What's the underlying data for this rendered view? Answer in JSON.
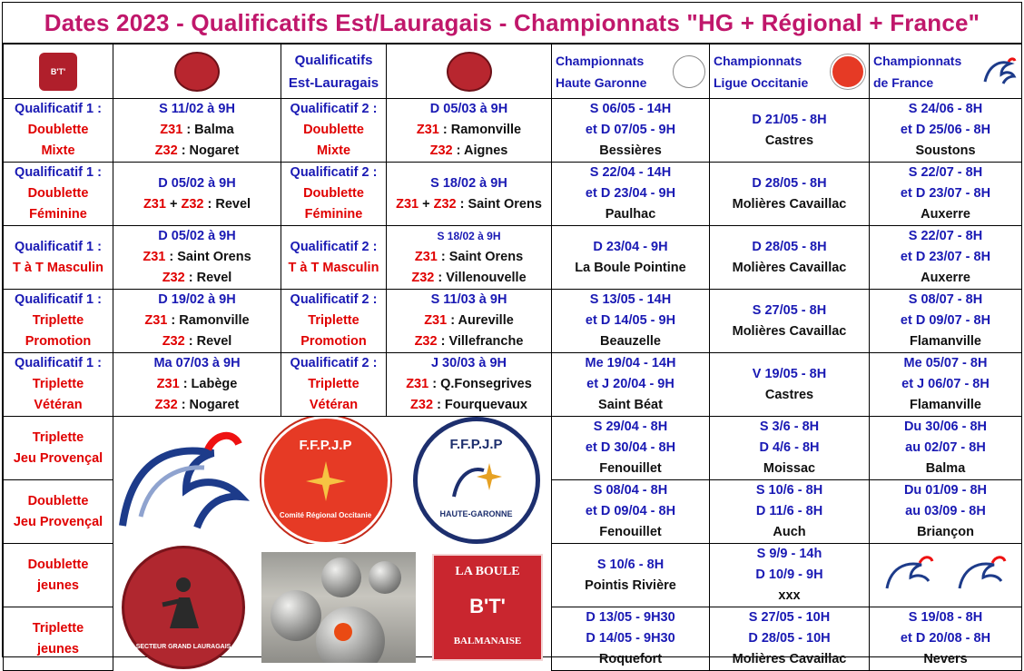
{
  "title": "Dates 2023 - Qualificatifs Est/Lauragais - Championnats \"HG + Régional + France\"",
  "header": {
    "qualif_line1": "Qualificatifs",
    "qualif_line2": "Est-Lauragais",
    "champ_hg_line1": "Championnats",
    "champ_hg_line2": "Haute Garonne",
    "champ_occ_line1": "Championnats",
    "champ_occ_line2": "Ligue Occitanie",
    "champ_fr_line1": "Championnats",
    "champ_fr_line2": "de France"
  },
  "logos": {
    "la_boule_top": "LA BOULE",
    "la_boule_bottom": "BALMANAISE",
    "la_boule_mark": "B'T'",
    "ffpjp": "F.F.P.J.P",
    "comite": "Comité Régional Occitanie",
    "haute_garonne": "HAUTE-GARONNE",
    "secteur": "SECTEUR GRAND LAURAGAIS"
  },
  "rows": [
    {
      "q1": [
        "Qualificatif 1 :",
        "Doublette",
        "Mixte"
      ],
      "q1_date": "S 11/02 à 9H",
      "q1_l2_code": "Z31",
      "q1_l2_place": ": Balma",
      "q1_l3_code": "Z32",
      "q1_l3_place": ": Nogaret",
      "q2": [
        "Qualificatif 2 :",
        "Doublette",
        "Mixte"
      ],
      "q2_date": "D 05/03 à 9H",
      "q2_l2_code": "Z31",
      "q2_l2_place": ": Ramonville",
      "q2_l3_code": "Z32",
      "q2_l3_place": ": Aignes",
      "hg": [
        "S 06/05 - 14H",
        "et D 07/05 - 9H",
        "Bessières"
      ],
      "occ": [
        "D 21/05 - 8H",
        "Castres"
      ],
      "fr": [
        "S 24/06 - 8H",
        "et D 25/06 - 8H",
        "Soustons"
      ]
    },
    {
      "q1": [
        "Qualificatif 1 :",
        "Doublette",
        "Féminine"
      ],
      "q1_date": "D 05/02 à 9H",
      "q1_combined": [
        "Z31",
        "+",
        "Z32",
        ": Revel"
      ],
      "q2": [
        "Qualificatif 2 :",
        "Doublette",
        "Féminine"
      ],
      "q2_date": "S 18/02 à 9H",
      "q2_combined": [
        "Z31",
        "+",
        "Z32",
        ": Saint Orens"
      ],
      "hg": [
        "S 22/04 - 14H",
        "et D 23/04 - 9H",
        "Paulhac"
      ],
      "occ": [
        "D 28/05 - 8H",
        "Molières Cavaillac"
      ],
      "fr": [
        "S 22/07 - 8H",
        "et D 23/07 - 8H",
        "Auxerre"
      ]
    },
    {
      "q1": [
        "Qualificatif 1 :",
        "T à T Masculin"
      ],
      "q1_date": "D 05/02 à 9H",
      "q1_l2_code": "Z31",
      "q1_l2_place": ": Saint Orens",
      "q1_l3_code": "Z32",
      "q1_l3_place": ": Revel",
      "q2": [
        "Qualificatif 2 :",
        "T à T Masculin"
      ],
      "q2_date": "S 18/02 à 9H",
      "q2_l2_code": "Z31",
      "q2_l2_place": ": Saint Orens",
      "q2_l3_code": "Z32",
      "q2_l3_place": ": Villenouvelle",
      "hg": [
        "D 23/04 - 9H",
        "La Boule Pointine"
      ],
      "occ": [
        "D 28/05 - 8H",
        "Molières Cavaillac"
      ],
      "fr": [
        "S 22/07 - 8H",
        "et D 23/07 - 8H",
        "Auxerre"
      ]
    },
    {
      "q1": [
        "Qualificatif 1 :",
        "Triplette",
        "Promotion"
      ],
      "q1_date": "D 19/02 à 9H",
      "q1_l2_code": "Z31",
      "q1_l2_place": ": Ramonville",
      "q1_l3_code": "Z32",
      "q1_l3_place": ": Revel",
      "q2": [
        "Qualificatif 2 :",
        "Triplette",
        "Promotion"
      ],
      "q2_date": "S 11/03 à 9H",
      "q2_l2_code": "Z31",
      "q2_l2_place": ": Aureville",
      "q2_l3_code": "Z32",
      "q2_l3_place": ": Villefranche",
      "hg": [
        "S 13/05 - 14H",
        "et D 14/05 - 9H",
        "Beauzelle"
      ],
      "occ": [
        "S 27/05 - 8H",
        "Molières Cavaillac"
      ],
      "fr": [
        "S 08/07 - 8H",
        "et D 09/07 - 8H",
        "Flamanville"
      ]
    },
    {
      "q1": [
        "Qualificatif 1 :",
        "Triplette",
        "Vétéran"
      ],
      "q1_date": "Ma 07/03 à 9H",
      "q1_l2_code": "Z31",
      "q1_l2_place": ": Labège",
      "q1_l3_code": "Z32",
      "q1_l3_place": ": Nogaret",
      "q2": [
        "Qualificatif 2 :",
        "Triplette",
        "Vétéran"
      ],
      "q2_date": "J 30/03 à 9H",
      "q2_l2_code": "Z31",
      "q2_l2_place": ": Q.Fonsegrives",
      "q2_l3_code": "Z32",
      "q2_l3_place": ": Fourquevaux",
      "hg": [
        "Me 19/04 - 14H",
        "et J 20/04 - 9H",
        "Saint Béat"
      ],
      "occ": [
        "V 19/05 - 8H",
        "Castres"
      ],
      "fr": [
        "Me 05/07 - 8H",
        "et J 06/07 - 8H",
        "Flamanville"
      ]
    }
  ],
  "lower_rows": [
    {
      "label": [
        "Triplette",
        "Jeu Provençal"
      ],
      "hg": [
        "S 29/04 - 8H",
        "et D 30/04 - 8H",
        "Fenouillet"
      ],
      "occ": [
        "S 3/6 - 8H",
        "D 4/6 - 8H",
        "Moissac"
      ],
      "fr": [
        "Du 30/06 - 8H",
        "au 02/07 - 8H",
        "Balma"
      ]
    },
    {
      "label": [
        "Doublette",
        "Jeu Provençal"
      ],
      "hg": [
        "S 08/04 - 8H",
        "et D 09/04 - 8H",
        "Fenouillet"
      ],
      "occ": [
        "S 10/6 - 8H",
        "D 11/6 - 8H",
        "Auch"
      ],
      "fr": [
        "Du 01/09 - 8H",
        "au 03/09 - 8H",
        "Briançon"
      ]
    },
    {
      "label": [
        "Doublette",
        "jeunes"
      ],
      "hg": [
        "S 10/6 - 8H",
        "Pointis Rivière"
      ],
      "occ": [
        "S 9/9 - 14h",
        "D 10/9 - 9H",
        "xxx"
      ],
      "fr": []
    },
    {
      "label": [
        "Triplette",
        "jeunes"
      ],
      "hg": [
        "D 13/05 - 9H30",
        "D 14/05 - 9H30",
        "Roquefort"
      ],
      "occ": [
        "S 27/05 - 10H",
        "D 28/05 - 10H",
        "Molières Cavaillac"
      ],
      "fr": [
        "S 19/08 - 8H",
        "et D 20/08 - 8H",
        "Nevers"
      ]
    }
  ],
  "colors": {
    "title": "#c0176b",
    "red": "#e00000",
    "blue": "#1a1ab4"
  }
}
